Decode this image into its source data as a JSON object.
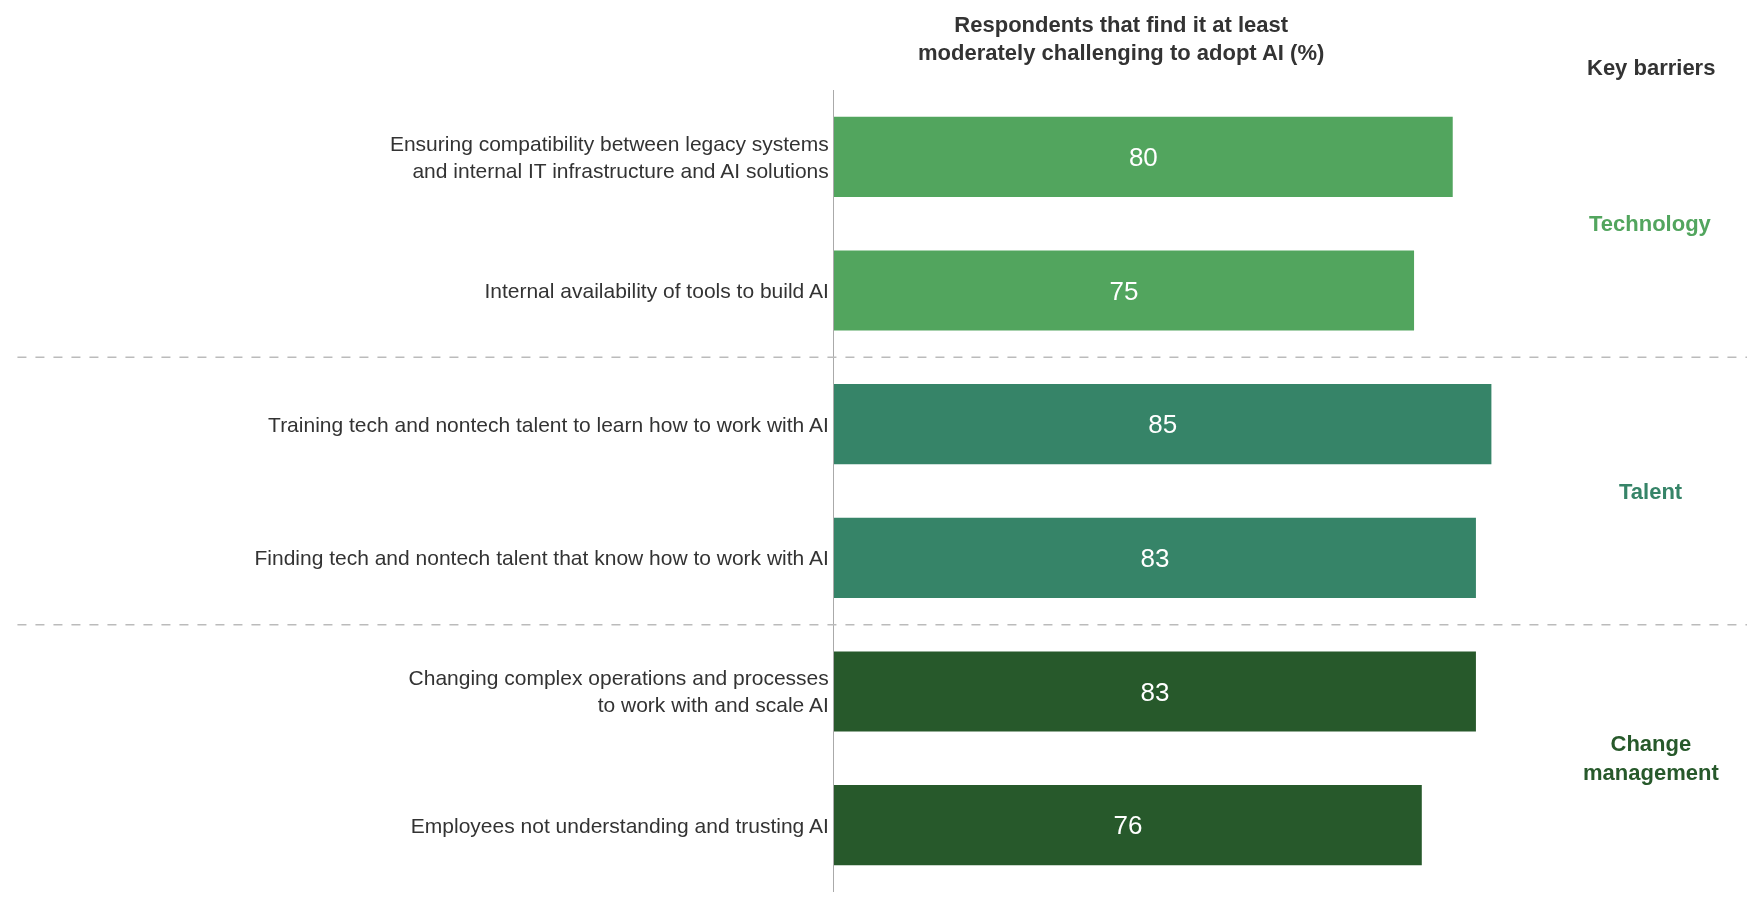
{
  "chart_data": {
    "type": "bar",
    "orientation": "horizontal",
    "title": "Respondents that find it at least\nmoderately challenging to adopt AI (%)",
    "categories": [
      "Ensuring compatibility between legacy systems\nand internal IT infrastructure and AI solutions",
      "Internal availability of tools to build AI",
      "Training tech and nontech talent to learn how to work with AI",
      "Finding tech and nontech talent that know how to work with AI",
      "Changing complex operations and processes\nto work with and scale AI",
      "Employees not understanding and trusting AI"
    ],
    "values": [
      80,
      75,
      85,
      83,
      83,
      76
    ],
    "colors": [
      "#52a55e",
      "#52a55e",
      "#368468",
      "#368468",
      "#27592b",
      "#27592b"
    ],
    "data_labels": true,
    "tick_labels": "y",
    "grid": false,
    "legend": false,
    "annotations": [
      "Key barriers",
      "Technology",
      "Talent",
      "Change\nmanagement"
    ]
  }
}
